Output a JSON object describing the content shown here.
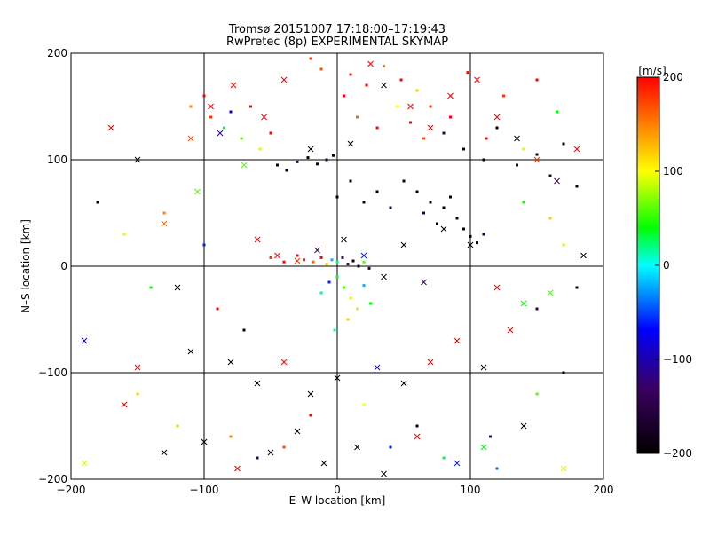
{
  "chart_data": {
    "type": "scatter",
    "title": "Tromsø 20151007 17:18:00–17:19:43",
    "subtitle": "RwPretec (8p) EXPERIMENTAL SKYMAP",
    "xlabel": "E–W location [km]",
    "ylabel": "N–S location [km]",
    "xlim": [
      -200,
      200
    ],
    "ylim": [
      -200,
      200
    ],
    "xticks": [
      -200,
      -100,
      0,
      100,
      200
    ],
    "yticks": [
      -200,
      -100,
      0,
      100,
      200
    ],
    "grid": true,
    "colorbar": {
      "label": "[m/s]",
      "ticks": [
        200,
        100,
        0,
        -100,
        -200
      ],
      "range": [
        -200,
        200
      ],
      "stops": [
        "#000000",
        "#3a0060",
        "#0000ff",
        "#00ffff",
        "#00ff00",
        "#ffff00",
        "#ff0000"
      ]
    },
    "markers": [
      "point (detection)",
      "x (cross)"
    ],
    "series": [
      {
        "shape": "dot",
        "points": [
          [
            -20,
            195,
            180
          ],
          [
            -12,
            185,
            170
          ],
          [
            10,
            180,
            190
          ],
          [
            22,
            170,
            200
          ],
          [
            35,
            188,
            150
          ],
          [
            48,
            175,
            200
          ],
          [
            60,
            165,
            120
          ],
          [
            70,
            150,
            180
          ],
          [
            85,
            140,
            200
          ],
          [
            98,
            182,
            200
          ],
          [
            112,
            120,
            200
          ],
          [
            125,
            160,
            180
          ],
          [
            140,
            110,
            90
          ],
          [
            150,
            175,
            200
          ],
          [
            165,
            145,
            40
          ],
          [
            5,
            160,
            200
          ],
          [
            15,
            140,
            160
          ],
          [
            30,
            130,
            200
          ],
          [
            45,
            150,
            100
          ],
          [
            55,
            135,
            200
          ],
          [
            65,
            120,
            170
          ],
          [
            80,
            125,
            -150
          ],
          [
            95,
            110,
            -180
          ],
          [
            110,
            100,
            -190
          ],
          [
            120,
            130,
            -200
          ],
          [
            135,
            95,
            -170
          ],
          [
            150,
            105,
            -200
          ],
          [
            160,
            85,
            -160
          ],
          [
            170,
            115,
            -190
          ],
          [
            180,
            75,
            -200
          ],
          [
            -110,
            150,
            150
          ],
          [
            -100,
            160,
            200
          ],
          [
            -95,
            140,
            180
          ],
          [
            -85,
            130,
            30
          ],
          [
            -80,
            145,
            -90
          ],
          [
            -72,
            120,
            60
          ],
          [
            -65,
            150,
            200
          ],
          [
            -58,
            110,
            90
          ],
          [
            -50,
            125,
            200
          ],
          [
            -45,
            95,
            -200
          ],
          [
            -38,
            90,
            -200
          ],
          [
            -30,
            98,
            -120
          ],
          [
            -22,
            102,
            -200
          ],
          [
            -15,
            96,
            -180
          ],
          [
            -8,
            100,
            -150
          ],
          [
            -3,
            104,
            -200
          ],
          [
            -30,
            10,
            200
          ],
          [
            -25,
            6,
            190
          ],
          [
            -18,
            4,
            160
          ],
          [
            -12,
            8,
            200
          ],
          [
            -8,
            2,
            120
          ],
          [
            -4,
            6,
            -20
          ],
          [
            0,
            4,
            20
          ],
          [
            4,
            8,
            -120
          ],
          [
            8,
            2,
            -160
          ],
          [
            12,
            5,
            -200
          ],
          [
            16,
            0,
            -180
          ],
          [
            20,
            4,
            60
          ],
          [
            24,
            -2,
            -150
          ],
          [
            -40,
            4,
            200
          ],
          [
            -50,
            8,
            180
          ],
          [
            0,
            -10,
            30
          ],
          [
            5,
            -20,
            60
          ],
          [
            -6,
            -15,
            -60
          ],
          [
            10,
            -30,
            90
          ],
          [
            15,
            -40,
            110
          ],
          [
            -12,
            -25,
            20
          ],
          [
            8,
            -50,
            120
          ],
          [
            -2,
            -60,
            10
          ],
          [
            20,
            -18,
            -20
          ],
          [
            25,
            -35,
            40
          ],
          [
            60,
            70,
            -200
          ],
          [
            70,
            60,
            -180
          ],
          [
            80,
            55,
            -200
          ],
          [
            90,
            45,
            -170
          ],
          [
            95,
            35,
            -200
          ],
          [
            100,
            28,
            -190
          ],
          [
            105,
            22,
            -200
          ],
          [
            110,
            30,
            -160
          ],
          [
            75,
            40,
            -200
          ],
          [
            65,
            50,
            -150
          ],
          [
            85,
            65,
            -200
          ],
          [
            50,
            80,
            -180
          ],
          [
            40,
            55,
            -150
          ],
          [
            30,
            70,
            -200
          ],
          [
            20,
            60,
            -170
          ],
          [
            10,
            80,
            -190
          ],
          [
            0,
            65,
            -200
          ],
          [
            -150,
            -120,
            120
          ],
          [
            -120,
            -150,
            80
          ],
          [
            -80,
            -160,
            150
          ],
          [
            -60,
            -180,
            -150
          ],
          [
            -40,
            -170,
            170
          ],
          [
            -20,
            -140,
            200
          ],
          [
            20,
            -130,
            100
          ],
          [
            40,
            -170,
            -60
          ],
          [
            60,
            -150,
            -200
          ],
          [
            80,
            -180,
            30
          ],
          [
            115,
            -160,
            -100
          ],
          [
            120,
            -190,
            -40
          ],
          [
            150,
            -120,
            60
          ],
          [
            170,
            -100,
            -200
          ],
          [
            -180,
            60,
            -200
          ],
          [
            -160,
            30,
            90
          ],
          [
            -140,
            -20,
            40
          ],
          [
            -130,
            50,
            150
          ],
          [
            -100,
            20,
            -60
          ],
          [
            -90,
            -40,
            200
          ],
          [
            -70,
            -60,
            -200
          ],
          [
            150,
            -40,
            -150
          ],
          [
            170,
            20,
            90
          ],
          [
            180,
            -20,
            -200
          ],
          [
            140,
            60,
            40
          ],
          [
            160,
            45,
            120
          ]
        ]
      },
      {
        "shape": "cross",
        "points": [
          [
            -170,
            130,
            200
          ],
          [
            -150,
            100,
            -200
          ],
          [
            -110,
            120,
            170
          ],
          [
            -95,
            150,
            200
          ],
          [
            -88,
            125,
            -100
          ],
          [
            -78,
            170,
            200
          ],
          [
            -70,
            95,
            60
          ],
          [
            -55,
            140,
            200
          ],
          [
            -40,
            175,
            200
          ],
          [
            -20,
            110,
            -200
          ],
          [
            10,
            115,
            -200
          ],
          [
            25,
            190,
            200
          ],
          [
            35,
            170,
            -200
          ],
          [
            55,
            150,
            200
          ],
          [
            70,
            130,
            200
          ],
          [
            85,
            160,
            200
          ],
          [
            105,
            175,
            200
          ],
          [
            120,
            140,
            200
          ],
          [
            135,
            120,
            -200
          ],
          [
            150,
            100,
            180
          ],
          [
            165,
            80,
            -150
          ],
          [
            180,
            110,
            200
          ],
          [
            -130,
            40,
            160
          ],
          [
            -120,
            -20,
            -200
          ],
          [
            -105,
            70,
            60
          ],
          [
            -60,
            25,
            200
          ],
          [
            -45,
            10,
            200
          ],
          [
            -30,
            5,
            180
          ],
          [
            -15,
            15,
            -150
          ],
          [
            5,
            25,
            -200
          ],
          [
            20,
            10,
            -60
          ],
          [
            35,
            -10,
            -200
          ],
          [
            50,
            20,
            -200
          ],
          [
            65,
            -15,
            -150
          ],
          [
            80,
            35,
            -200
          ],
          [
            100,
            20,
            -200
          ],
          [
            120,
            -20,
            200
          ],
          [
            140,
            -35,
            40
          ],
          [
            160,
            -25,
            60
          ],
          [
            185,
            10,
            -200
          ],
          [
            -190,
            -70,
            -80
          ],
          [
            -150,
            -95,
            200
          ],
          [
            -110,
            -80,
            -200
          ],
          [
            -80,
            -90,
            -200
          ],
          [
            -60,
            -110,
            -200
          ],
          [
            -40,
            -90,
            200
          ],
          [
            -20,
            -120,
            -200
          ],
          [
            0,
            -105,
            -200
          ],
          [
            30,
            -95,
            -100
          ],
          [
            50,
            -110,
            -200
          ],
          [
            70,
            -90,
            200
          ],
          [
            90,
            -70,
            200
          ],
          [
            110,
            -95,
            -200
          ],
          [
            130,
            -60,
            200
          ],
          [
            -160,
            -130,
            200
          ],
          [
            -130,
            -175,
            -200
          ],
          [
            -100,
            -165,
            -200
          ],
          [
            -75,
            -190,
            200
          ],
          [
            -50,
            -175,
            -200
          ],
          [
            -30,
            -155,
            -200
          ],
          [
            -10,
            -185,
            -200
          ],
          [
            15,
            -170,
            -200
          ],
          [
            35,
            -195,
            -200
          ],
          [
            60,
            -160,
            200
          ],
          [
            90,
            -185,
            -60
          ],
          [
            110,
            -170,
            40
          ],
          [
            140,
            -150,
            -200
          ],
          [
            170,
            -190,
            90
          ],
          [
            -190,
            -185,
            90
          ]
        ]
      }
    ]
  }
}
